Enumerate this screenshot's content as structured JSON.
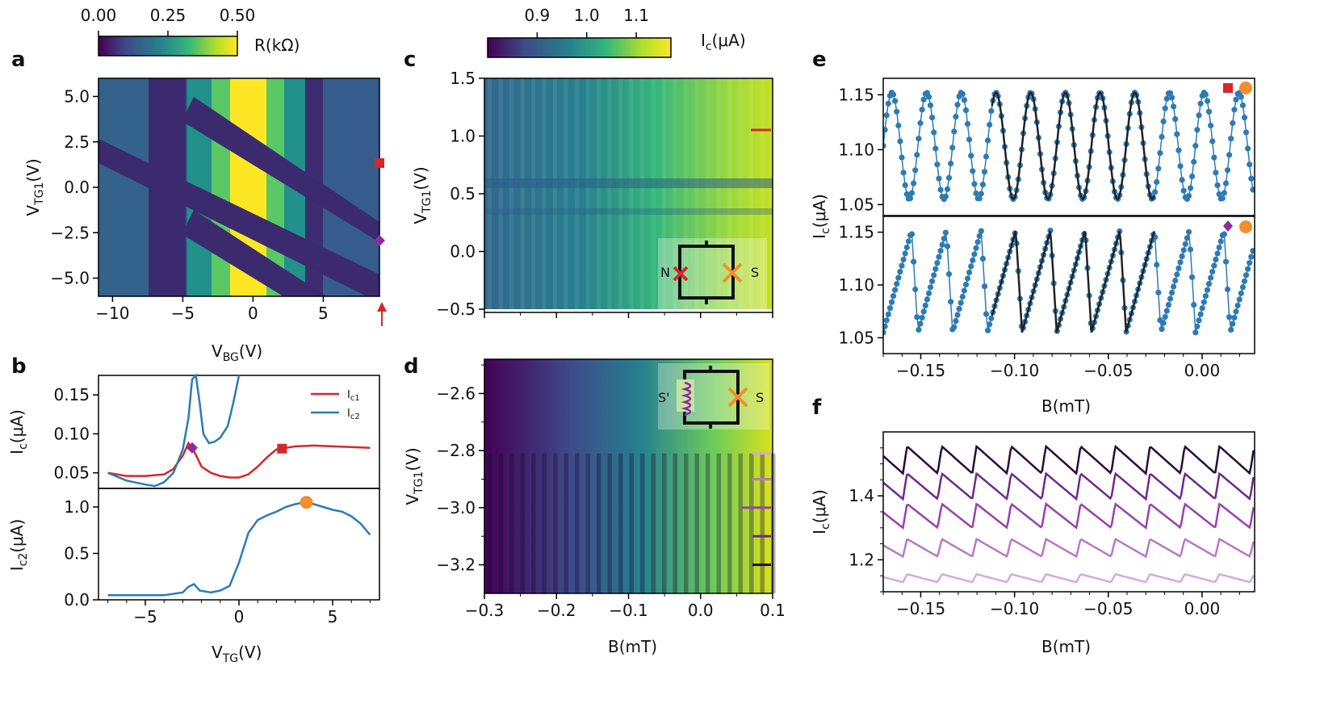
{
  "panel_labels": {
    "a": "a",
    "b": "b",
    "c": "c",
    "d": "d",
    "e": "e",
    "f": "f"
  },
  "colors": {
    "red": "#d62728",
    "blue": "#2c7bb6",
    "orange": "#f28e2b",
    "purple": "#8e2c9c",
    "viridis": [
      "#440154",
      "#482878",
      "#3e4a89",
      "#31688e",
      "#26828e",
      "#1f9e89",
      "#35b779",
      "#6ece58",
      "#b5de2b",
      "#fde725"
    ],
    "purples": [
      "#d7a8e0",
      "#b878c8",
      "#9a3fb0",
      "#6d2a8c",
      "#2a0a3a"
    ]
  },
  "chart_data": [
    {
      "id": "a",
      "type": "heatmap",
      "title": "",
      "xlabel": "V_BG(V)",
      "ylabel": "V_TG1(V)",
      "xlim": [
        -11,
        9
      ],
      "ylim": [
        -6,
        6
      ],
      "xticks": [
        "−10",
        "−5",
        "0",
        "5"
      ],
      "xtick_values": [
        -10,
        -5,
        0,
        5
      ],
      "yticks": [
        "5.0",
        "2.5",
        "0.0",
        "−2.5",
        "−5.0"
      ],
      "ytick_values": [
        5.0,
        2.5,
        0.0,
        -2.5,
        -5.0
      ],
      "colorbar": {
        "label": "R(kΩ)",
        "ticks": [
          "0.00",
          "0.25",
          "0.50"
        ],
        "tick_values": [
          0,
          0.25,
          0.5
        ],
        "range": [
          0,
          0.5
        ]
      },
      "markers": [
        {
          "shape": "square",
          "color": "red",
          "x": 9,
          "y": 1.5
        },
        {
          "shape": "diamond",
          "color": "purple",
          "x": 9,
          "y": -2.7
        },
        {
          "shape": "arrow",
          "color": "red",
          "x": 9,
          "y": -6
        }
      ]
    },
    {
      "id": "b",
      "type": "line",
      "xlabel": "V_TG(V)",
      "xlim": [
        -7.5,
        7.5
      ],
      "xticks": [
        "−5",
        "0",
        "5"
      ],
      "xtick_values": [
        -5,
        0,
        5
      ],
      "top": {
        "ylabel": "I_c(μA)",
        "ylim": [
          0.03,
          0.175
        ],
        "yticks": [
          "0.05",
          "0.10",
          "0.15"
        ],
        "ytick_values": [
          0.05,
          0.1,
          0.15
        ],
        "legend": [
          "I_c1",
          "I_c2"
        ],
        "series": [
          {
            "name": "I_c1",
            "color": "red",
            "x": [
              -7,
              -6,
              -5,
              -4,
              -3.5,
              -3,
              -2.7,
              -2.4,
              -2,
              -1.5,
              -1,
              -0.5,
              0,
              0.5,
              1,
              1.5,
              2,
              2.5,
              3,
              4,
              5,
              6,
              7
            ],
            "y": [
              0.05,
              0.046,
              0.046,
              0.048,
              0.055,
              0.072,
              0.088,
              0.078,
              0.058,
              0.05,
              0.046,
              0.044,
              0.044,
              0.048,
              0.058,
              0.07,
              0.08,
              0.082,
              0.084,
              0.085,
              0.084,
              0.083,
              0.082
            ]
          },
          {
            "name": "I_c2",
            "color": "blue",
            "x": [
              -7,
              -6,
              -5,
              -4.5,
              -4,
              -3.5,
              -3,
              -2.7,
              -2.5,
              -2.3,
              -2.1,
              -1.9,
              -1.6,
              -1.3,
              -1,
              -0.6,
              -0.3,
              0
            ],
            "y": [
              0.05,
              0.04,
              0.035,
              0.033,
              0.038,
              0.05,
              0.08,
              0.12,
              0.17,
              0.175,
              0.14,
              0.1,
              0.088,
              0.09,
              0.095,
              0.11,
              0.14,
              0.175
            ]
          }
        ],
        "markers": [
          {
            "shape": "diamond",
            "color": "purple",
            "x": -2.5,
            "y": 0.082
          },
          {
            "shape": "square",
            "color": "red",
            "x": 2.3,
            "y": 0.081
          }
        ]
      },
      "bottom": {
        "ylabel": "I_c2(μA)",
        "ylim": [
          0,
          1.2
        ],
        "yticks": [
          "0.0",
          "0.5",
          "1.0"
        ],
        "ytick_values": [
          0.0,
          0.5,
          1.0
        ],
        "series": [
          {
            "name": "I_c2",
            "color": "blue",
            "x": [
              -7,
              -5,
              -4,
              -3,
              -2.7,
              -2.4,
              -2.1,
              -1.5,
              -1,
              -0.5,
              0,
              0.5,
              1,
              1.5,
              2,
              2.5,
              3,
              3.5,
              4,
              4.5,
              5,
              5.5,
              6,
              6.5,
              7
            ],
            "y": [
              0.05,
              0.05,
              0.05,
              0.08,
              0.14,
              0.17,
              0.1,
              0.08,
              0.1,
              0.15,
              0.4,
              0.72,
              0.86,
              0.91,
              0.95,
              1.0,
              1.03,
              1.05,
              1.03,
              1.0,
              0.97,
              0.95,
              0.9,
              0.82,
              0.7
            ]
          }
        ],
        "markers": [
          {
            "shape": "circle",
            "color": "orange",
            "x": 3.6,
            "y": 1.05
          }
        ]
      }
    },
    {
      "id": "c",
      "type": "heatmap",
      "xlim": [
        -0.3,
        0.1
      ],
      "ylim": [
        -0.5,
        1.5
      ],
      "ylabel": "V_TG1(V)",
      "yticks": [
        "1.5",
        "1.0",
        "0.5",
        "0.0",
        "−0.5"
      ],
      "ytick_values": [
        1.5,
        1.0,
        0.5,
        0.0,
        -0.5
      ],
      "colorbar": {
        "label": "I_c(μA)",
        "ticks": [
          "0.9",
          "1.0",
          "1.1"
        ],
        "tick_values": [
          0.9,
          1.0,
          1.1
        ],
        "range": [
          0.8,
          1.17
        ]
      },
      "inset_labels": [
        "N",
        "S"
      ],
      "markers": [
        {
          "shape": "dash",
          "color": "red",
          "y": 1.07
        }
      ]
    },
    {
      "id": "d",
      "type": "heatmap",
      "xlabel": "B(mT)",
      "ylabel": "V_TG1(V)",
      "xlim": [
        -0.3,
        0.1
      ],
      "ylim": [
        -3.3,
        -2.48
      ],
      "xticks": [
        "−0.3",
        "−0.2",
        "−0.1",
        "0.0",
        "0.1"
      ],
      "xtick_values": [
        -0.3,
        -0.2,
        -0.1,
        0.0,
        0.1
      ],
      "yticks": [
        "−2.6",
        "−2.8",
        "−3.0",
        "−3.2"
      ],
      "ytick_values": [
        -2.6,
        -2.8,
        -3.0,
        -3.2
      ],
      "inset_labels": [
        "S'",
        "S"
      ],
      "markers": [
        {
          "shape": "dash",
          "color": "purples.0",
          "y": -2.81
        },
        {
          "shape": "dash",
          "color": "purples.1",
          "y": -2.9
        },
        {
          "shape": "dash",
          "color": "purples.2",
          "y": -3.0
        },
        {
          "shape": "dash",
          "color": "purples.3",
          "y": -3.1
        },
        {
          "shape": "dash",
          "color": "purples.4",
          "y": -3.2
        }
      ]
    },
    {
      "id": "e",
      "type": "scatter",
      "xlabel": "B(mT)",
      "ylabel": "I_c(μA)",
      "xlim": [
        -0.17,
        0.028
      ],
      "xticks": [
        "−0.15",
        "−0.10",
        "−0.05",
        "0.00"
      ],
      "xtick_values": [
        -0.15,
        -0.1,
        -0.05,
        0.0
      ],
      "period_mT": 0.0185,
      "top": {
        "ylim": [
          1.04,
          1.165
        ],
        "yticks": [
          "1.15",
          "1.10",
          "1.05"
        ],
        "ytick_values": [
          1.15,
          1.1,
          1.05
        ],
        "shape": "sine",
        "min": 1.055,
        "max": 1.152,
        "fit_range": [
          -0.112,
          -0.025
        ],
        "markers": [
          "square-red",
          "circle-orange"
        ]
      },
      "bottom": {
        "ylim": [
          1.035,
          1.165
        ],
        "yticks": [
          "1.15",
          "1.10",
          "1.05"
        ],
        "ytick_values": [
          1.15,
          1.1,
          1.05
        ],
        "shape": "sawtooth",
        "min": 1.055,
        "max": 1.152,
        "fit_range": [
          -0.112,
          -0.025
        ],
        "markers": [
          "diamond-purple",
          "circle-orange"
        ]
      }
    },
    {
      "id": "f",
      "type": "line",
      "xlabel": "B(mT)",
      "ylabel": "I_c(μA)",
      "xlim": [
        -0.17,
        0.028
      ],
      "ylim": [
        1.1,
        1.6
      ],
      "xticks": [
        "−0.15",
        "−0.10",
        "−0.05",
        "0.00"
      ],
      "xtick_values": [
        -0.15,
        -0.1,
        -0.05,
        0.0
      ],
      "yticks": [
        "1.4",
        "1.2"
      ],
      "ytick_values": [
        1.4,
        1.2
      ],
      "period_mT": 0.0185,
      "series": [
        {
          "name": "trace-1",
          "color": "purples.4",
          "base": 1.47,
          "amp": 0.085
        },
        {
          "name": "trace-2",
          "color": "purples.3",
          "base": 1.39,
          "amp": 0.08
        },
        {
          "name": "trace-3",
          "color": "purples.2",
          "base": 1.3,
          "amp": 0.075
        },
        {
          "name": "trace-4",
          "color": "purples.1",
          "base": 1.21,
          "amp": 0.055
        },
        {
          "name": "trace-5",
          "color": "purples.0",
          "base": 1.13,
          "amp": 0.025
        }
      ]
    }
  ]
}
